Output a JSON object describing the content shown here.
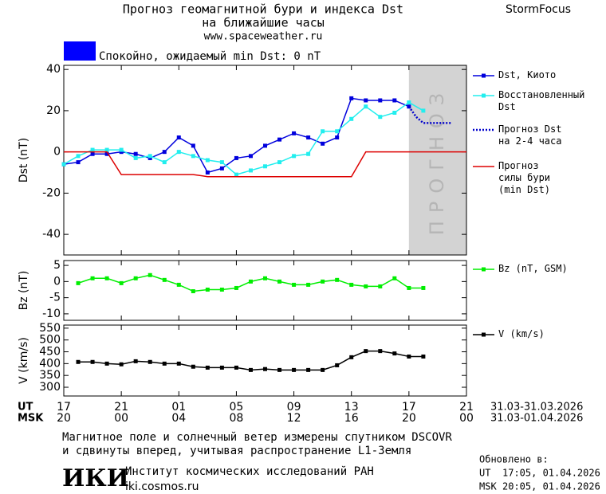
{
  "header": {
    "title": "Прогноз геомагнитной бури и индекса Dst",
    "subtitle": "на ближайшие часы",
    "url": "www.spaceweather.ru",
    "brand": "StormFocus"
  },
  "status": {
    "text": "Спокойно, ожидаемый min Dst: 0 nT",
    "color": "#0000ff"
  },
  "time_axis": {
    "rows": [
      {
        "name": "UT",
        "range": "31.03-31.03.2026",
        "ticks": [
          {
            "value": 0,
            "label": "17"
          },
          {
            "value": 4,
            "label": "21"
          },
          {
            "value": 8,
            "label": "01"
          },
          {
            "value": 12,
            "label": "05"
          },
          {
            "value": 16,
            "label": "09"
          },
          {
            "value": 20,
            "label": "13"
          },
          {
            "value": 24,
            "label": "17"
          },
          {
            "value": 28,
            "label": "21"
          }
        ]
      },
      {
        "name": "MSK",
        "range": "31.03-01.04.2026",
        "ticks": [
          {
            "value": 0,
            "label": "20"
          },
          {
            "value": 4,
            "label": "00"
          },
          {
            "value": 8,
            "label": "04"
          },
          {
            "value": 12,
            "label": "08"
          },
          {
            "value": 16,
            "label": "12"
          },
          {
            "value": 20,
            "label": "16"
          },
          {
            "value": 24,
            "label": "20"
          },
          {
            "value": 28,
            "label": "00"
          }
        ]
      }
    ]
  },
  "chart_data": [
    {
      "type": "line",
      "y_label": "Dst (nT)",
      "xlim": [
        0,
        28
      ],
      "ylim": [
        -50,
        42
      ],
      "yticks": [
        -40,
        -20,
        0,
        20,
        40
      ],
      "forecast_region": {
        "x": [
          24,
          28
        ],
        "label": "ПРОГНОЗ",
        "color": "#d3d3d3"
      },
      "series": [
        {
          "name": "Dst, Киото",
          "color": "#0000dd",
          "marker": "square",
          "x": [
            0,
            1,
            2,
            3,
            4,
            5,
            6,
            7,
            8,
            9,
            10,
            11,
            12,
            13,
            14,
            15,
            16,
            17,
            18,
            19,
            20,
            21,
            22,
            23,
            24
          ],
          "values": [
            -6,
            -5,
            -1,
            -1,
            0,
            -1,
            -3,
            0,
            7,
            3,
            -10,
            -8,
            -3,
            -2,
            3,
            6,
            9,
            7,
            4,
            7,
            26,
            25,
            25,
            25,
            22
          ]
        },
        {
          "name": "Восстановленный\nDst",
          "color": "#22eeee",
          "marker": "square",
          "x": [
            0,
            1,
            2,
            3,
            4,
            5,
            6,
            7,
            8,
            9,
            10,
            11,
            12,
            13,
            14,
            15,
            16,
            17,
            18,
            19,
            20,
            21,
            22,
            23,
            24,
            25
          ],
          "values": [
            -6,
            -2,
            1,
            1,
            1,
            -3,
            -2,
            -5,
            0,
            -2,
            -4,
            -5,
            -11,
            -9,
            -7,
            -5,
            -2,
            -1,
            10,
            10,
            16,
            22,
            17,
            19,
            24,
            20
          ]
        },
        {
          "name": "Прогноз Dst\nна 2-4 часа",
          "color": "#0000cc",
          "dash": "dotted",
          "x": [
            24,
            24.5,
            25,
            26,
            27
          ],
          "values": [
            22,
            17,
            14,
            14,
            14
          ]
        },
        {
          "name": "Прогноз\nсилы бури\n(min Dst)",
          "color": "#dd0000",
          "x": [
            0,
            3,
            4,
            9,
            10,
            20,
            21,
            28
          ],
          "values": [
            0,
            0,
            -11,
            -11,
            -12,
            -12,
            0,
            0
          ]
        }
      ]
    },
    {
      "type": "line",
      "y_label": "Bz (nT)",
      "xlim": [
        0,
        28
      ],
      "ylim": [
        -12,
        6.5
      ],
      "yticks": [
        -10,
        -5,
        0,
        5
      ],
      "series": [
        {
          "name": "Bz (nT, GSM)",
          "color": "#00ee00",
          "marker": "square",
          "x": [
            1,
            2,
            3,
            4,
            5,
            6,
            7,
            8,
            9,
            10,
            11,
            12,
            13,
            14,
            15,
            16,
            17,
            18,
            19,
            20,
            21,
            22,
            23,
            24,
            25
          ],
          "values": [
            -0.5,
            1,
            1,
            -0.5,
            1,
            2,
            0.5,
            -1,
            -3,
            -2.5,
            -2.5,
            -2,
            0,
            1,
            0,
            -1,
            -1,
            0,
            0.5,
            -1,
            -1.5,
            -1.5,
            1,
            -2,
            -2
          ]
        }
      ]
    },
    {
      "type": "line",
      "y_label": "V (km/s)",
      "xlim": [
        0,
        28
      ],
      "ylim": [
        263,
        563
      ],
      "yticks": [
        300,
        350,
        400,
        450,
        500,
        550
      ],
      "series": [
        {
          "name": "V (km/s)",
          "color": "#000000",
          "marker": "square",
          "x": [
            1,
            2,
            3,
            4,
            5,
            6,
            7,
            8,
            9,
            10,
            11,
            12,
            13,
            14,
            15,
            16,
            17,
            18,
            19,
            20,
            21,
            22,
            23,
            24,
            25
          ],
          "values": [
            407,
            407,
            400,
            397,
            410,
            407,
            400,
            400,
            387,
            383,
            383,
            383,
            373,
            377,
            373,
            373,
            373,
            373,
            393,
            427,
            453,
            453,
            443,
            430,
            430
          ]
        }
      ]
    }
  ],
  "footer": {
    "note": [
      "Магнитное поле и солнечный ветер измерены спутником DSCOVR",
      "и сдвинуты вперед, учитывая распространение L1-Земля"
    ],
    "logo": "ИКИ",
    "institute": "Институт космических исследований РАН",
    "institute_url": "iki.cosmos.ru",
    "updated_label": "Обновлено в:",
    "updated": [
      {
        "zone": "UT",
        "time": "17:05, 01.04.2026"
      },
      {
        "zone": "MSK",
        "time": "20:05, 01.04.2026"
      }
    ]
  }
}
